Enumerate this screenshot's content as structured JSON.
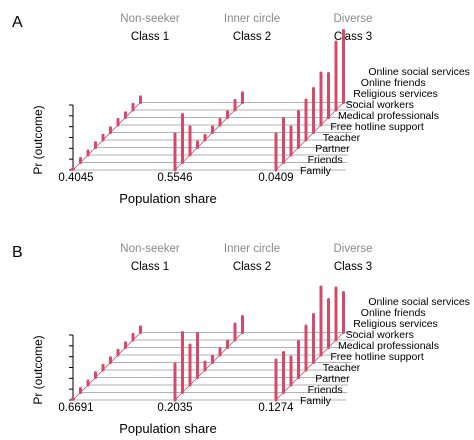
{
  "colors": {
    "accent": "#d6496a",
    "guide": "#999999",
    "axis": "#000000",
    "muted_text": "#8a8a8a",
    "text": "#000000"
  },
  "chart_data": [
    {
      "type": "bar",
      "panel_label": "A",
      "ylabel": "Pr (outcome)",
      "xlabel": "Population share",
      "categories": [
        "Family",
        "Friends",
        "Partner",
        "Teacher",
        "Free hotline support",
        "Medical professionals",
        "Social workers",
        "Religious services",
        "Online friends",
        "Online social services"
      ],
      "series": [
        {
          "class_type": "Non-seeker",
          "class_name": "Class 1",
          "population_share": "0.4045",
          "values": [
            0.0,
            0.05,
            0.05,
            0.06,
            0.06,
            0.06,
            0.07,
            0.06,
            0.07,
            0.07
          ]
        },
        {
          "class_type": "Inner circle",
          "class_name": "Class 2",
          "population_share": "0.5546",
          "values": [
            0.45,
            0.6,
            0.35,
            0.07,
            0.06,
            0.07,
            0.07,
            0.07,
            0.12,
            0.12
          ]
        },
        {
          "class_type": "Diverse",
          "class_name": "Class 3",
          "population_share": "0.0409",
          "values": [
            0.45,
            0.55,
            0.35,
            0.45,
            0.5,
            0.55,
            0.65,
            0.55,
            0.85,
            0.9
          ]
        }
      ]
    },
    {
      "type": "bar",
      "panel_label": "B",
      "ylabel": "Pr (outcome)",
      "xlabel": "Population share",
      "categories": [
        "Family",
        "Friends",
        "Partner",
        "Teacher",
        "Free hotline support",
        "Medical professionals",
        "Social workers",
        "Religious services",
        "Online friends",
        "Online social services"
      ],
      "series": [
        {
          "class_type": "Non-seeker",
          "class_name": "Class 1",
          "population_share": "0.6691",
          "values": [
            0.0,
            0.05,
            0.05,
            0.06,
            0.06,
            0.06,
            0.06,
            0.06,
            0.07,
            0.07
          ]
        },
        {
          "class_type": "Inner circle",
          "class_name": "Class 2",
          "population_share": "0.2035",
          "values": [
            0.45,
            0.75,
            0.5,
            0.55,
            0.1,
            0.08,
            0.08,
            0.08,
            0.2,
            0.2
          ]
        },
        {
          "class_type": "Diverse",
          "class_name": "Class 3",
          "population_share": "0.1274",
          "values": [
            0.5,
            0.5,
            0.35,
            0.45,
            0.55,
            0.6,
            0.85,
            0.6,
            0.65,
            0.5
          ]
        }
      ]
    }
  ]
}
